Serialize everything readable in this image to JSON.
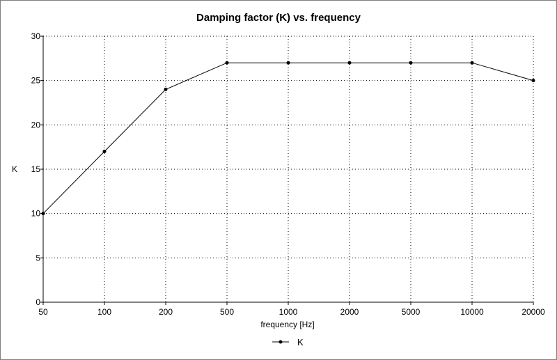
{
  "chart_data": {
    "type": "line",
    "title": "Damping factor (K) vs. frequency",
    "xlabel": "frequency [Hz]",
    "ylabel": "K",
    "categories": [
      "50",
      "100",
      "200",
      "500",
      "1000",
      "2000",
      "5000",
      "10000",
      "20000"
    ],
    "series": [
      {
        "name": "K",
        "values": [
          10,
          17,
          24,
          27,
          27,
          27,
          27,
          27,
          25
        ],
        "color": "#000000"
      }
    ],
    "ylim": [
      0,
      30
    ],
    "yticks": [
      "0",
      "5",
      "10",
      "15",
      "20",
      "25",
      "30"
    ],
    "grid": true,
    "grid_style": "dotted",
    "legend": "bottom-center"
  }
}
